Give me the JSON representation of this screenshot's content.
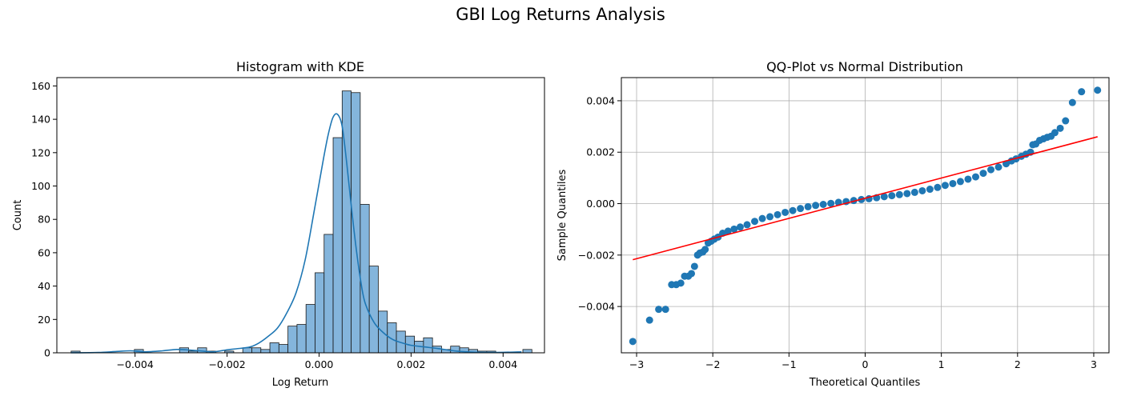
{
  "figure": {
    "suptitle": "GBI Log Returns Analysis"
  },
  "chart_data": [
    {
      "type": "bar",
      "subtype": "histogram_with_kde",
      "title": "Histogram with KDE",
      "xlabel": "Log Return",
      "ylabel": "Count",
      "xlim": [
        -0.0057,
        0.0049
      ],
      "ylim": [
        0,
        165
      ],
      "xticks": [
        -0.004,
        -0.002,
        0.0,
        0.002,
        0.004
      ],
      "xtick_labels": [
        "−0.004",
        "−0.002",
        "0.000",
        "0.002",
        "0.004"
      ],
      "yticks": [
        0,
        20,
        40,
        60,
        80,
        100,
        120,
        140,
        160
      ],
      "ytick_labels": [
        "0",
        "20",
        "40",
        "60",
        "80",
        "100",
        "120",
        "140",
        "160"
      ],
      "grid": false,
      "colors": {
        "bar_fill": "#6fa8d6",
        "bar_edge": "#1a1a1a",
        "kde": "#1f77b4"
      },
      "bins": {
        "start": -0.00539,
        "width": 0.0001964,
        "counts": [
          1,
          0,
          0,
          0,
          0,
          0,
          0,
          2,
          0,
          0,
          0,
          0,
          3,
          1,
          3,
          1,
          0,
          1,
          0,
          3,
          3,
          2,
          6,
          5,
          16,
          17,
          29,
          48,
          71,
          129,
          157,
          156,
          89,
          52,
          25,
          18,
          13,
          10,
          7,
          9,
          4,
          2,
          4,
          3,
          2,
          1,
          1,
          0,
          0,
          0,
          2
        ]
      },
      "kde": {
        "x": [
          -0.0054,
          -0.0048,
          -0.0044,
          -0.0041,
          -0.0038,
          -0.0034,
          -0.0031,
          -0.0029,
          -0.0026,
          -0.0023,
          -0.002,
          -0.0018,
          -0.0015,
          -0.0013,
          -0.0011,
          -0.0009,
          -0.0007,
          -0.0005,
          -0.0003,
          -0.0001,
          0.0001,
          0.0002,
          0.0003,
          0.0004,
          0.0005,
          0.0006,
          0.0007,
          0.0008,
          0.0009,
          0.001,
          0.0012,
          0.0014,
          0.0016,
          0.0018,
          0.002,
          0.0023,
          0.0026,
          0.003,
          0.0035,
          0.004,
          0.0044
        ],
        "y": [
          0,
          0.2,
          0.8,
          1.2,
          0.6,
          1.2,
          2.0,
          1.8,
          1.2,
          0.6,
          1.8,
          2.4,
          3.5,
          6,
          10,
          15,
          24,
          36,
          56,
          86,
          117,
          131,
          141,
          143,
          136,
          114,
          88,
          64,
          44,
          30,
          18,
          12,
          8,
          6,
          4.5,
          3.5,
          2.5,
          1,
          0.3,
          0.3,
          0.6
        ]
      }
    },
    {
      "type": "scatter",
      "subtype": "qq_plot",
      "title": "QQ-Plot vs Normal Distribution",
      "xlabel": "Theoretical Quantiles",
      "ylabel": "Sample Quantiles",
      "xlim": [
        -3.2,
        3.2
      ],
      "ylim": [
        -0.0058,
        0.0049
      ],
      "xticks": [
        -3,
        -2,
        -1,
        0,
        1,
        2,
        3
      ],
      "xtick_labels": [
        "−3",
        "−2",
        "−1",
        "0",
        "1",
        "2",
        "3"
      ],
      "yticks": [
        -0.004,
        -0.002,
        0.0,
        0.002,
        0.004
      ],
      "ytick_labels": [
        "−0.004",
        "−0.002",
        "0.000",
        "0.002",
        "0.004"
      ],
      "grid": true,
      "colors": {
        "points": "#1f77b4",
        "fit_line": "#ff0000"
      },
      "fit_line": {
        "x": [
          -3.05,
          3.05
        ],
        "y": [
          -0.00218,
          0.0026
        ]
      },
      "points": [
        [
          -3.05,
          -0.00536
        ],
        [
          -2.83,
          -0.00453
        ],
        [
          -2.71,
          -0.00411
        ],
        [
          -2.62,
          -0.00411
        ],
        [
          -2.54,
          -0.00315
        ],
        [
          -2.48,
          -0.00315
        ],
        [
          -2.42,
          -0.00309
        ],
        [
          -2.37,
          -0.00282
        ],
        [
          -2.32,
          -0.00282
        ],
        [
          -2.28,
          -0.00272
        ],
        [
          -2.24,
          -0.00244
        ],
        [
          -2.2,
          -0.002
        ],
        [
          -2.17,
          -0.00192
        ],
        [
          -2.13,
          -0.00188
        ],
        [
          -2.1,
          -0.00178
        ],
        [
          -2.06,
          -0.00153
        ],
        [
          -2.02,
          -0.00146
        ],
        [
          -1.98,
          -0.00138
        ],
        [
          -1.93,
          -0.0013
        ],
        [
          -1.87,
          -0.00115
        ],
        [
          -1.8,
          -0.00107
        ],
        [
          -1.72,
          -0.00099
        ],
        [
          -1.64,
          -0.00091
        ],
        [
          -1.55,
          -0.00082
        ],
        [
          -1.45,
          -0.00069
        ],
        [
          -1.35,
          -0.00058
        ],
        [
          -1.25,
          -0.00051
        ],
        [
          -1.15,
          -0.00043
        ],
        [
          -1.05,
          -0.00034
        ],
        [
          -0.95,
          -0.00027
        ],
        [
          -0.85,
          -0.00019
        ],
        [
          -0.75,
          -0.00012
        ],
        [
          -0.65,
          -7e-05
        ],
        [
          -0.55,
          -3e-05
        ],
        [
          -0.45,
          1e-05
        ],
        [
          -0.35,
          5e-05
        ],
        [
          -0.25,
          8e-05
        ],
        [
          -0.15,
          0.00012
        ],
        [
          -0.05,
          0.00016
        ],
        [
          0.05,
          0.00019
        ],
        [
          0.15,
          0.00023
        ],
        [
          0.25,
          0.00027
        ],
        [
          0.35,
          0.00031
        ],
        [
          0.45,
          0.00035
        ],
        [
          0.55,
          0.00039
        ],
        [
          0.65,
          0.00044
        ],
        [
          0.75,
          0.0005
        ],
        [
          0.85,
          0.00056
        ],
        [
          0.95,
          0.00063
        ],
        [
          1.05,
          0.00071
        ],
        [
          1.15,
          0.00078
        ],
        [
          1.25,
          0.00086
        ],
        [
          1.35,
          0.00095
        ],
        [
          1.45,
          0.00104
        ],
        [
          1.55,
          0.00118
        ],
        [
          1.65,
          0.00132
        ],
        [
          1.75,
          0.00142
        ],
        [
          1.85,
          0.00155
        ],
        [
          1.92,
          0.00166
        ],
        [
          1.98,
          0.00174
        ],
        [
          2.05,
          0.00184
        ],
        [
          2.11,
          0.00192
        ],
        [
          2.17,
          0.002
        ],
        [
          2.2,
          0.00229
        ],
        [
          2.24,
          0.00232
        ],
        [
          2.29,
          0.00246
        ],
        [
          2.34,
          0.00252
        ],
        [
          2.39,
          0.00258
        ],
        [
          2.44,
          0.00262
        ],
        [
          2.49,
          0.00276
        ],
        [
          2.56,
          0.00293
        ],
        [
          2.63,
          0.00322
        ],
        [
          2.72,
          0.00393
        ],
        [
          2.84,
          0.00435
        ],
        [
          3.05,
          0.00441
        ]
      ]
    }
  ]
}
